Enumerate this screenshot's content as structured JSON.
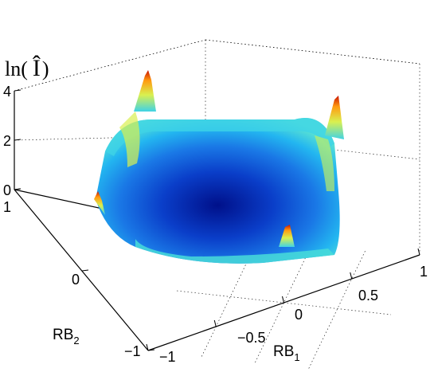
{
  "chart_data": {
    "type": "surface",
    "title": "",
    "xlabel": "RB",
    "xlabel_sub": "1",
    "ylabel": "RB",
    "ylabel_sub": "2",
    "zlabel": "ln( Î )",
    "xlim": [
      -1,
      1
    ],
    "ylim": [
      -1,
      1
    ],
    "zlim": [
      0,
      4
    ],
    "x_ticks": [
      "−1",
      "−0.5",
      "0",
      "0.5",
      "1"
    ],
    "y_ticks": [
      "−1",
      "0",
      "1"
    ],
    "z_ticks": [
      "0",
      "2",
      "4"
    ],
    "grid": true,
    "colormap": "jet",
    "surface_samples": {
      "x": [
        -1,
        -0.5,
        0,
        0.5,
        1
      ],
      "y": [
        -1,
        -0.5,
        0,
        0.5,
        1
      ],
      "z_note_values": [
        [
          3.8,
          1.6,
          0.9,
          1.6,
          3.8
        ],
        [
          1.6,
          0.5,
          0.2,
          0.5,
          1.6
        ],
        [
          0.9,
          0.2,
          0.0,
          0.2,
          0.9
        ],
        [
          1.6,
          0.5,
          0.2,
          0.5,
          1.6
        ],
        [
          2.0,
          1.6,
          0.9,
          1.6,
          3.5
        ]
      ]
    }
  }
}
